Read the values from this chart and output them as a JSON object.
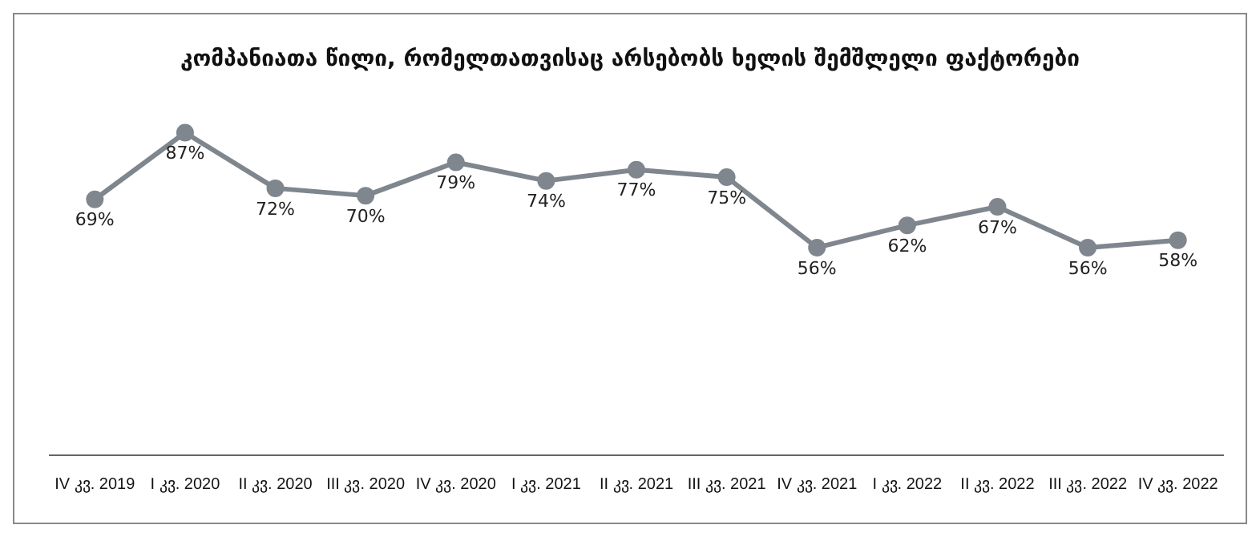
{
  "chart_data": {
    "type": "line",
    "title": "კომპანიათა წილი, რომელთათვისაც არსებობს ხელის შემშლელი ფაქტორები",
    "categories": [
      "IV კვ. 2019",
      "I კვ. 2020",
      "II კვ. 2020",
      "III კვ. 2020",
      "IV კვ. 2020",
      "I კვ. 2021",
      "II კვ. 2021",
      "III კვ. 2021",
      "IV კვ. 2021",
      "I კვ. 2022",
      "II კვ. 2022",
      "III კვ. 2022",
      "IV კვ. 2022"
    ],
    "color": "#7f868e",
    "values": [
      69,
      87,
      72,
      70,
      79,
      74,
      77,
      75,
      56,
      62,
      67,
      56,
      58
    ],
    "value_labels": [
      "69%",
      "87%",
      "72%",
      "70%",
      "79%",
      "74%",
      "77%",
      "75%",
      "56%",
      "62%",
      "67%",
      "56%",
      "58%"
    ],
    "tick_labels": "x",
    "grid": false,
    "legend": false,
    "marker": "circle",
    "line_style": "solid"
  }
}
